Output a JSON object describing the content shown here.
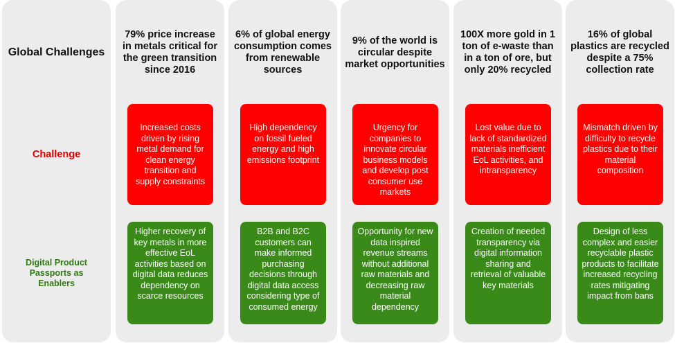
{
  "row_headers": {
    "global_challenges": "Global Challenges",
    "challenge": "Challenge",
    "enablers": "Digital Product Passports as Enablers"
  },
  "colors": {
    "panel": "#ececec",
    "challenge_fill": "#ff0000",
    "enabler_fill": "#3a8a1a"
  },
  "columns": [
    {
      "title": "79% price increase in metals critical for the green transition since 2016",
      "challenge": "Increased costs driven by rising metal demand for clean energy transition and supply constraints",
      "enabler": "Higher recovery of key metals in more effective EoL activities based on digital data reduces dependency on scarce resources"
    },
    {
      "title": "6% of global energy consumption comes from renewable sources",
      "challenge": "High dependency on fossil fueled energy and high emissions footprint",
      "enabler": "B2B and B2C customers can make informed purchasing decisions through digital data access considering type of consumed energy"
    },
    {
      "title": "9% of the world is circular despite market opportunities",
      "challenge": "Urgency for companies to innovate circular business models and develop post consumer use markets",
      "enabler": "Opportunity for new data inspired revenue streams without additional raw materials and decreasing raw material dependency"
    },
    {
      "title": "100X more gold in 1 ton of e-waste than in a ton of ore, but only 20% recycled",
      "challenge": "Lost value due to lack of standardized materials inefficient EoL activities, and intransparency",
      "enabler": "Creation of needed transparency via digital information sharing and retrieval of valuable key materials"
    },
    {
      "title": "16% of global plastics are recycled despite a 75% collection rate",
      "challenge": "Mismatch driven by difficulty to recycle plastics due to their material composition",
      "enabler": "Design of less complex and easier recyclable plastic products to facilitate increased recycling rates mitigating impact from bans"
    }
  ]
}
